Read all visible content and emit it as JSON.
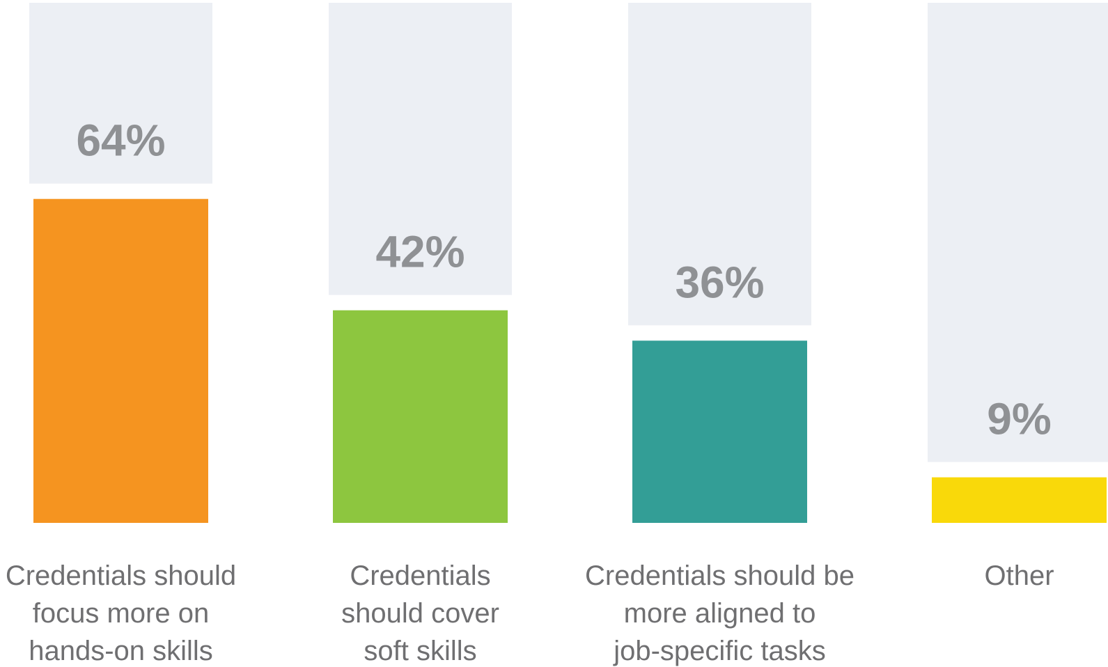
{
  "chart_data": {
    "type": "bar",
    "categories": [
      [
        "Credentials should",
        "focus more on",
        "hands-on skills"
      ],
      [
        "Credentials",
        "should cover",
        "soft skills"
      ],
      [
        "Credentials should be",
        "more aligned to",
        "job-specific tasks"
      ],
      [
        "Other"
      ]
    ],
    "values": [
      64,
      42,
      36,
      9
    ],
    "value_labels": [
      "64%",
      "42%",
      "36%",
      "9%"
    ],
    "unit": "%",
    "ylim": [
      0,
      100
    ],
    "colors": [
      "#f59420",
      "#8dc63f",
      "#339e96",
      "#f9d90a"
    ],
    "background_color": "#eceff4",
    "value_label_color": "#8f9194",
    "category_label_color": "#6f6f71",
    "grid": false,
    "legend": "none"
  }
}
